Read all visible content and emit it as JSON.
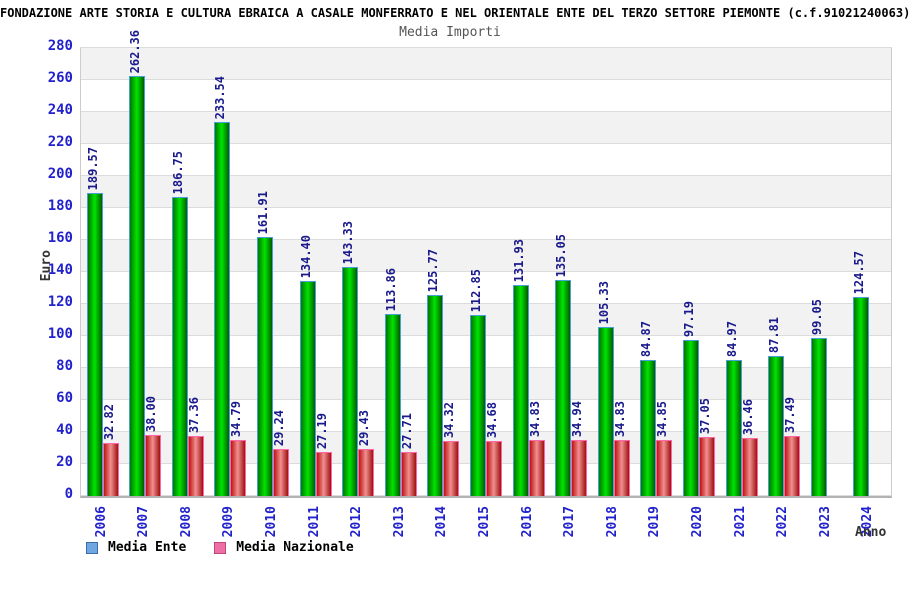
{
  "header": {
    "title": "FONDAZIONE ARTE STORIA E CULTURA EBRAICA A CASALE MONFERRATO E NEL ORIENTALE ENTE DEL TERZO SETTORE PIEMONTE (c.f.91021240063)"
  },
  "chart_data": {
    "type": "bar",
    "title": "Media Importi",
    "xlabel": "Anno",
    "ylabel": "Euro",
    "ylim": [
      0,
      280
    ],
    "ytick_step": 20,
    "grid": "horizontal gridlines with alternating gray/white bands every 20 units",
    "legend_position": "bottom-left",
    "categories": [
      "2006",
      "2007",
      "2008",
      "2009",
      "2010",
      "2011",
      "2012",
      "2013",
      "2014",
      "2015",
      "2016",
      "2017",
      "2018",
      "2019",
      "2020",
      "2021",
      "2022",
      "2023",
      "2024"
    ],
    "series": [
      {
        "name": "Media Ente",
        "values": [
          189.57,
          262.36,
          186.75,
          233.54,
          161.91,
          134.4,
          143.33,
          113.86,
          125.77,
          112.85,
          131.93,
          135.05,
          105.33,
          84.87,
          97.19,
          84.97,
          87.81,
          99.05,
          124.57
        ]
      },
      {
        "name": "Media Nazionale",
        "values": [
          32.82,
          38.0,
          37.36,
          34.79,
          29.24,
          27.19,
          29.43,
          27.71,
          34.32,
          34.68,
          34.83,
          34.94,
          34.83,
          34.85,
          37.05,
          36.46,
          37.49,
          null,
          null
        ]
      }
    ]
  },
  "colors": {
    "title_text": "#000000",
    "subtitle_text": "#555555",
    "axis_tick_text": "#2222CC",
    "value_label_text": "#1A1A8C",
    "axis_title_text": "#333333",
    "band_gray": "#F2F2F2",
    "gridline": "#DCDCDC",
    "bar_green_mid": "#00E400",
    "bar_green_edge": "#017701",
    "bar_green_border": "#4A9FD8",
    "bar_red_mid": "#F09090",
    "bar_red_edge": "#C11212",
    "bar_red_border": "#FF66AA",
    "legend_ente_swatch": "#6FA8E0",
    "legend_nazionale_swatch": "#EE6FA5"
  }
}
